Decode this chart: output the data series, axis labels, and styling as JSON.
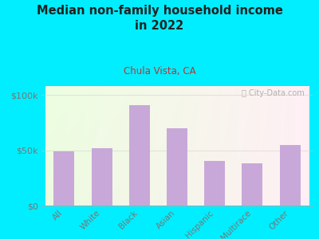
{
  "title": "Median non-family household income\nin 2022",
  "subtitle": "Chula Vista, CA",
  "categories": [
    "All",
    "White",
    "Black",
    "Asian",
    "Hispanic",
    "Multirace",
    "Other"
  ],
  "values": [
    49000,
    52000,
    91000,
    70000,
    40000,
    38000,
    55000
  ],
  "bar_color": "#c8a8d8",
  "background_outer": "#00eeff",
  "background_inner_topleft": "#d8efd0",
  "background_inner_right": "#f0f0e8",
  "background_inner_bottom": "#e8f0e0",
  "title_color": "#222222",
  "subtitle_color": "#bb3333",
  "tick_label_color": "#777777",
  "yticks": [
    0,
    50000,
    100000
  ],
  "ytick_labels": [
    "$0",
    "$50k",
    "$100k"
  ],
  "ylim": [
    0,
    108000
  ],
  "watermark": "ⓘ City-Data.com"
}
